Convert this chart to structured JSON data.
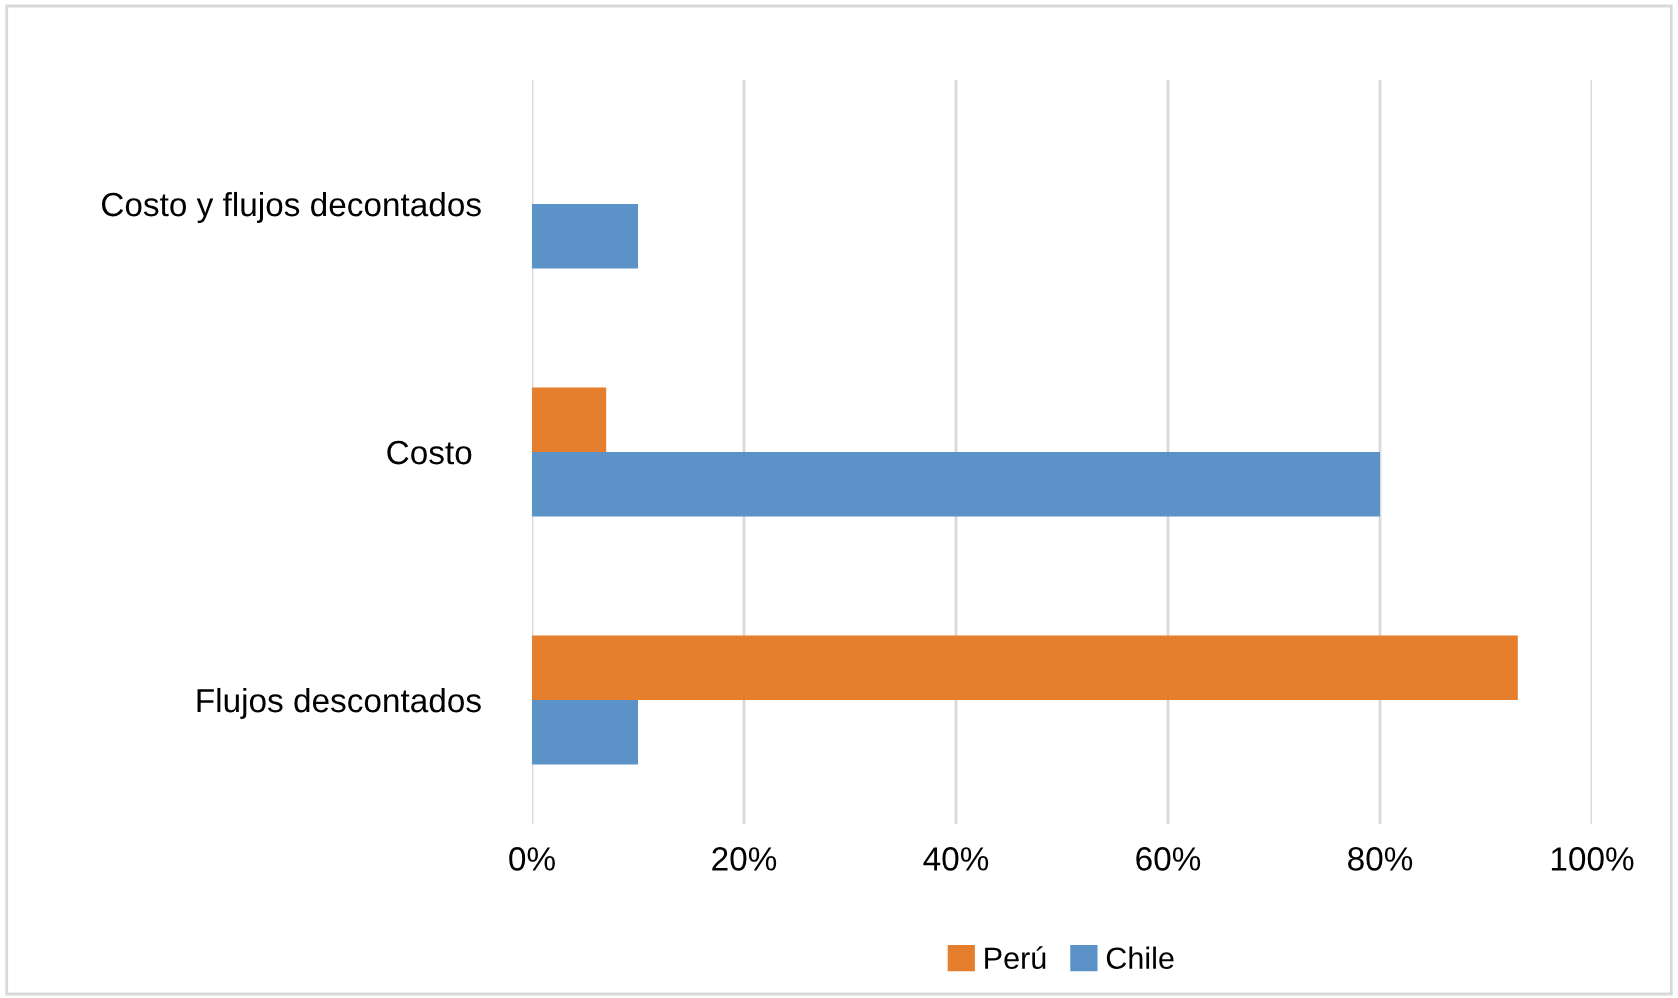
{
  "chart_data": {
    "type": "bar",
    "orientation": "horizontal",
    "categories": [
      "Costo y flujos decontados",
      "Costo ",
      "Flujos descontados"
    ],
    "series": [
      {
        "name": "Perú",
        "color": "#e57f2d",
        "values": [
          null,
          7,
          93
        ]
      },
      {
        "name": "Chile",
        "color": "#5b93c9",
        "values": [
          10,
          80,
          10
        ]
      }
    ],
    "xlim": [
      0,
      100
    ],
    "xticks": [
      {
        "value": 0,
        "label": "0%"
      },
      {
        "value": 20,
        "label": "20%"
      },
      {
        "value": 40,
        "label": "40%"
      },
      {
        "value": 60,
        "label": "60%"
      },
      {
        "value": 80,
        "label": "80%"
      },
      {
        "value": 100,
        "label": "100%"
      }
    ],
    "grid": "x",
    "legend": "bottom"
  }
}
